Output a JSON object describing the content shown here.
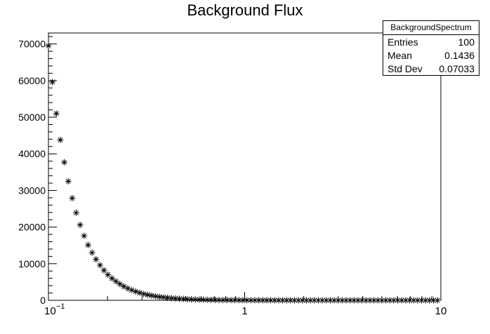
{
  "chart_data": {
    "type": "scatter",
    "title": "Background Flux",
    "xlabel": "",
    "ylabel": "",
    "x_scale": "log",
    "xlim": [
      0.1,
      10
    ],
    "ylim": [
      0,
      73000
    ],
    "x_ticks": [
      "10^-1",
      "1",
      "10"
    ],
    "y_ticks": [
      0,
      10000,
      20000,
      30000,
      40000,
      50000,
      60000,
      70000
    ],
    "marker": "asterisk",
    "series": [
      {
        "x": [
          0.1,
          0.1047,
          0.1097,
          0.115,
          0.1205,
          0.1262,
          0.1322,
          0.1385,
          0.1451,
          0.152,
          0.1593,
          0.1669,
          0.1748,
          0.1832,
          0.1919,
          0.201,
          0.2106,
          0.2207,
          0.2312,
          0.2422,
          0.2538,
          0.2659,
          0.2785,
          0.2918,
          0.3058,
          0.3203,
          0.3356,
          0.3516,
          0.3684,
          0.386,
          0.4044,
          0.4237,
          0.4439,
          0.465,
          0.4872,
          0.5105,
          0.5348,
          0.5603,
          0.587,
          0.615,
          0.6444,
          0.6751,
          0.7073,
          0.741,
          0.7763,
          0.8133,
          0.8521,
          0.8927,
          0.9353,
          0.9799,
          1.0266,
          1.0756,
          1.1269,
          1.1806,
          1.2369,
          1.2959,
          1.3577,
          1.4224,
          1.4903,
          1.5613,
          1.6358,
          1.7138,
          1.7955,
          1.8811,
          1.9709,
          2.0648,
          2.1633,
          2.2665,
          2.3746,
          2.4878,
          2.6065,
          2.7308,
          2.861,
          2.9975,
          3.1404,
          3.2902,
          3.4471,
          3.6115,
          3.7837,
          3.9642,
          4.1532,
          4.3513,
          4.5588,
          4.7762,
          5.004,
          5.2427,
          5.4927,
          5.7546,
          6.029,
          6.3166,
          6.6178,
          6.9335,
          7.2641,
          7.6105,
          7.9735,
          8.3538,
          8.7522,
          9.1696,
          9.6068
        ],
        "y": [
          69500,
          59600,
          51000,
          43800,
          37700,
          32500,
          27900,
          23900,
          20600,
          17600,
          15100,
          13000,
          11200,
          9600,
          8200,
          7000,
          6000,
          5200,
          4450,
          3800,
          3250,
          2800,
          2400,
          2050,
          1750,
          1500,
          1300,
          1100,
          950,
          810,
          700,
          600,
          510,
          440,
          380,
          320,
          275,
          235,
          200,
          172,
          148,
          127,
          109,
          93,
          80,
          68,
          58,
          50,
          43,
          37,
          31,
          27,
          23,
          20,
          17,
          14,
          12,
          10,
          9,
          8,
          7,
          6,
          5,
          4,
          3,
          3,
          3,
          2,
          2,
          2,
          2,
          1,
          1,
          1,
          1,
          1,
          1,
          1,
          1,
          1,
          1,
          1,
          1,
          1,
          1,
          1,
          1,
          1,
          1,
          1,
          1,
          1,
          1,
          1,
          1,
          1,
          1,
          1,
          1
        ]
      }
    ]
  },
  "stats": {
    "name": "BackgroundSpectrum",
    "rows": [
      {
        "label": "Entries",
        "value": "100"
      },
      {
        "label": "Mean",
        "value": "0.1436"
      },
      {
        "label": "Std Dev",
        "value": "0.07033"
      }
    ]
  }
}
